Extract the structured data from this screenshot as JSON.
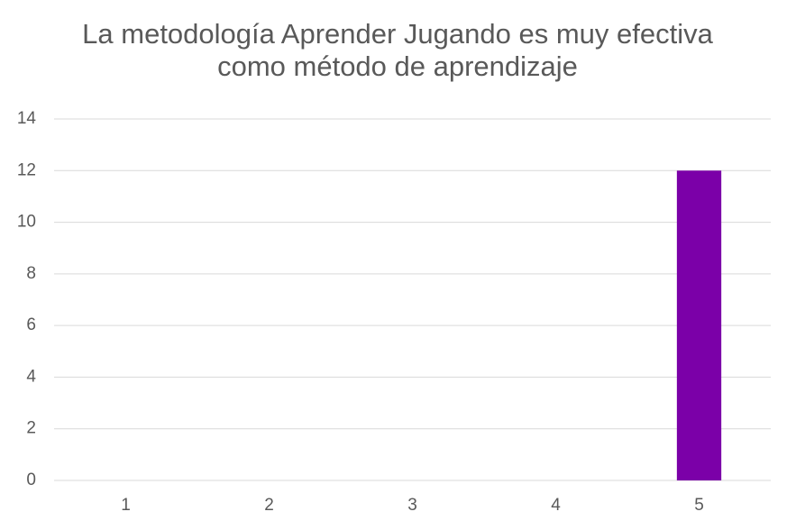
{
  "chart_data": {
    "type": "bar",
    "title": "La metodología Aprender Jugando es muy efectiva como método de aprendizaje",
    "categories": [
      "1",
      "2",
      "3",
      "4",
      "5"
    ],
    "values": [
      0,
      0,
      0,
      0,
      12
    ],
    "color": "#7b00a8",
    "ylim": [
      0,
      14
    ],
    "yticks": [
      0,
      2,
      4,
      6,
      8,
      10,
      12,
      14
    ],
    "grid": true
  }
}
